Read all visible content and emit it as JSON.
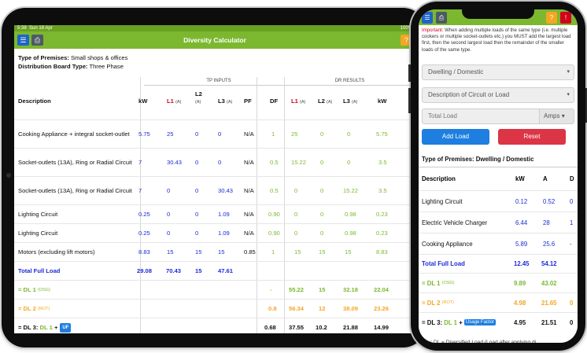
{
  "tablet": {
    "status": {
      "time": "5:38",
      "date": "Sun 18 Apr",
      "battery": "100%"
    },
    "header": {
      "title": "Diversity Calculator",
      "menu_icon": "☰",
      "print_icon": "⎙",
      "help_icon": "?"
    },
    "info": {
      "premises_label": "Type of Premises:",
      "premises_value": "Small shops & offices",
      "board_label": "Distribution Board Type:",
      "board_value": "Three Phase"
    },
    "groups": {
      "tp_inputs": "TP INPUTS",
      "dr_results": "DR RESULTS"
    },
    "columns": {
      "description": "Description",
      "kw": "kW",
      "l1": "L1",
      "l1_unit": "(A)",
      "l2": "L2",
      "l2_unit": "(A)",
      "l3": "L3",
      "l3_unit": "(A)",
      "pf": "PF",
      "df": "DF",
      "dr_l1": "L1",
      "dr_l1_unit": "(A)",
      "dr_l2": "L2",
      "dr_l2_unit": "(A)",
      "dr_l3": "L3",
      "dr_l3_unit": "(A)",
      "dr_kw": "kW"
    },
    "rows": [
      {
        "desc": "Cooking Appliance + integral socket-outlet",
        "kw": "5.75",
        "l1": "25",
        "l2": "0",
        "l3": "0",
        "pf": "N/A",
        "df": "1",
        "r1": "25",
        "r2": "0",
        "r3": "0",
        "rkw": "5.75"
      },
      {
        "desc": "Socket-outlets (13A), Ring or Radial Circuit",
        "kw": "7",
        "l1": "30.43",
        "l2": "0",
        "l3": "0",
        "pf": "N/A",
        "df": "0.5",
        "r1": "15.22",
        "r2": "0",
        "r3": "0",
        "rkw": "3.5"
      },
      {
        "desc": "Socket-outlets (13A), Ring or Radial Circuit",
        "kw": "7",
        "l1": "0",
        "l2": "0",
        "l3": "30.43",
        "pf": "N/A",
        "df": "0.5",
        "r1": "0",
        "r2": "0",
        "r3": "15.22",
        "rkw": "3.5"
      },
      {
        "desc": "Lighting Circuit",
        "kw": "0.25",
        "l1": "0",
        "l2": "0",
        "l3": "1.09",
        "pf": "N/A",
        "df": "0.90",
        "r1": "0",
        "r2": "0",
        "r3": "0.98",
        "rkw": "0.23"
      },
      {
        "desc": "Lighting Circuit",
        "kw": "0.25",
        "l1": "0",
        "l2": "0",
        "l3": "1.09",
        "pf": "N/A",
        "df": "0.90",
        "r1": "0",
        "r2": "0",
        "r3": "0.98",
        "rkw": "0.23"
      },
      {
        "desc": "Motors (excluding lift motors)",
        "kw": "8.83",
        "l1": "15",
        "l2": "15",
        "l3": "15",
        "pf": "0.85",
        "df": "1",
        "r1": "15",
        "r2": "15",
        "r3": "15",
        "rkw": "8.83"
      }
    ],
    "total": {
      "label": "Total Full Load",
      "kw": "29.08",
      "l1": "70.43",
      "l2": "15",
      "l3": "47.61"
    },
    "dl1": {
      "label": "= DL 1",
      "sub": "(OSG)",
      "df": "-",
      "r1": "55.22",
      "r2": "15",
      "r3": "32.18",
      "rkw": "22.04"
    },
    "dl2": {
      "label": "= DL 2",
      "sub": "(ROT)",
      "df": "0.8",
      "r1": "56.34",
      "r2": "12",
      "r3": "38.09",
      "rkw": "23.26"
    },
    "dl3": {
      "label": "= DL 3:",
      "dl1": "DL 1",
      "plus": "+",
      "badge": "UF",
      "df": "0.68",
      "r1": "37.55",
      "r2": "10.2",
      "r3": "21.88",
      "rkw": "14.99"
    }
  },
  "phone": {
    "header": {
      "menu_icon": "☰",
      "print_icon": "⎙",
      "help_icon": "?",
      "warn_icon": "!"
    },
    "note_important": "Important:",
    "note_text": "When adding multiple loads of the same type (i.e. multiple cookers or multiple socket-outlets etc.) you MUST add the largest load first, then the second largest load then the remainder of the smaller loads of the same type.",
    "premises_select": "Dwelling / Domestic",
    "circuit_select": "Description of Circuit or Load",
    "total_load_placeholder": "Total Load",
    "amps_select": "Amps",
    "add_button": "Add Load",
    "reset_button": "Reset",
    "premises_heading": "Type of Premises: Dwelling / Domestic",
    "columns": {
      "description": "Description",
      "kw": "kW",
      "a": "A",
      "d": "D"
    },
    "rows": [
      {
        "desc": "Lighting Circuit",
        "kw": "0.12",
        "a": "0.52",
        "d": "0"
      },
      {
        "desc": "Electric Vehicle Charger",
        "kw": "6.44",
        "a": "28",
        "d": "1"
      },
      {
        "desc": "Cooking Appliance",
        "kw": "5.89",
        "a": "25.6",
        "d": "-"
      }
    ],
    "total": {
      "label": "Total Full Load",
      "kw": "12.45",
      "a": "54.12"
    },
    "dl1": {
      "label": "= DL 1",
      "sub": "(OSG)",
      "kw": "9.89",
      "a": "43.02"
    },
    "dl2": {
      "label": "= DL 2",
      "sub": "(ROT)",
      "kw": "4.98",
      "a": "21.65",
      "d": "0"
    },
    "dl3": {
      "label": "= DL 3:",
      "dl1": "DL 1",
      "plus": "+",
      "badge": "Usage Factor",
      "kw": "4.95",
      "a": "21.51",
      "d": "0"
    },
    "key": "Key: DL = Diversified Load (Load after applying di"
  },
  "colors": {
    "header_green": "#7cb82f",
    "input_blue": "#1c2bd6",
    "dl1_green": "#7cb82f",
    "dl2_orange": "#f5a623",
    "accent_blue": "#1e7fe0",
    "danger_red": "#dc3545"
  }
}
